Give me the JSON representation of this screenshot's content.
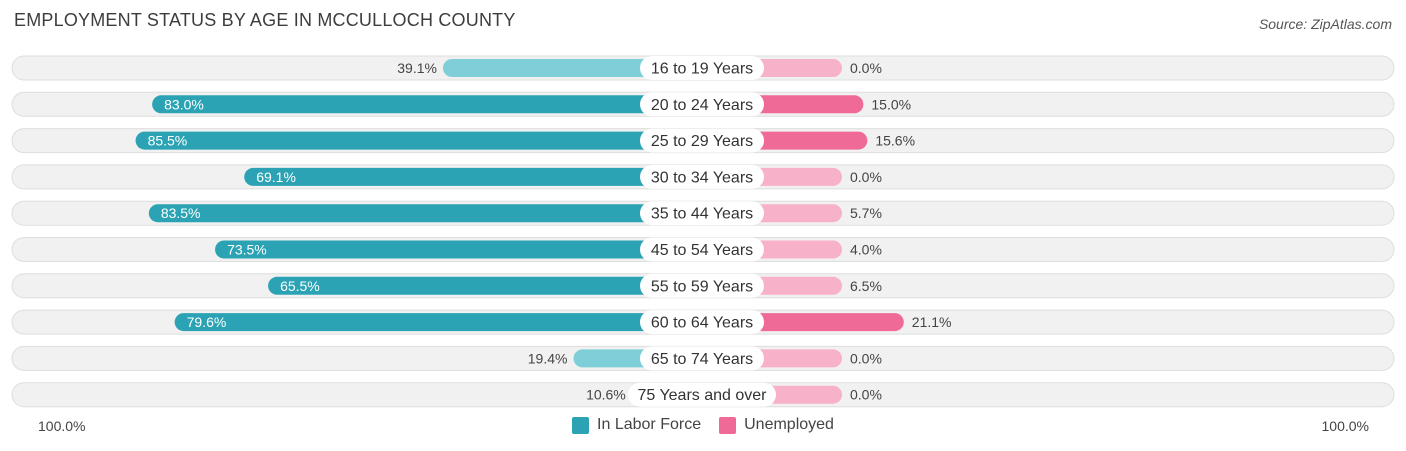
{
  "header": {
    "title": "EMPLOYMENT STATUS BY AGE IN MCCULLOCH COUNTY",
    "source": "Source: ZipAtlas.com"
  },
  "axis": {
    "left_label": "100.0%",
    "right_label": "100.0%"
  },
  "legend": {
    "items": [
      {
        "label": "In Labor Force",
        "color": "#2ba3b4"
      },
      {
        "label": "Unemployed",
        "color": "#f06a98"
      }
    ]
  },
  "colors": {
    "labor_strong": "#2ba3b4",
    "labor_light": "#7fcfd9",
    "unemp_strong": "#f06a98",
    "unemp_light": "#f7b1c8",
    "track": "#f1f1f1",
    "track_border": "#dedede"
  },
  "chart_data": {
    "type": "bar",
    "title": "EMPLOYMENT STATUS BY AGE IN MCCULLOCH COUNTY",
    "orientation": "diverging-horizontal",
    "xlim": [
      -100,
      100
    ],
    "categories": [
      "16 to 19 Years",
      "20 to 24 Years",
      "25 to 29 Years",
      "30 to 34 Years",
      "35 to 44 Years",
      "45 to 54 Years",
      "55 to 59 Years",
      "60 to 64 Years",
      "65 to 74 Years",
      "75 Years and over"
    ],
    "series": [
      {
        "name": "In Labor Force",
        "side": "left",
        "values": [
          39.1,
          83.0,
          85.5,
          69.1,
          83.5,
          73.5,
          65.5,
          79.6,
          19.4,
          10.6
        ],
        "labels": [
          "39.1%",
          "83.0%",
          "85.5%",
          "69.1%",
          "83.5%",
          "73.5%",
          "65.5%",
          "79.6%",
          "19.4%",
          "10.6%"
        ]
      },
      {
        "name": "Unemployed",
        "side": "right",
        "values": [
          0.0,
          15.0,
          15.6,
          0.0,
          5.7,
          4.0,
          6.5,
          21.1,
          0.0,
          0.0
        ],
        "labels": [
          "0.0%",
          "15.0%",
          "15.6%",
          "0.0%",
          "5.7%",
          "4.0%",
          "6.5%",
          "21.1%",
          "0.0%",
          "0.0%"
        ]
      }
    ]
  }
}
